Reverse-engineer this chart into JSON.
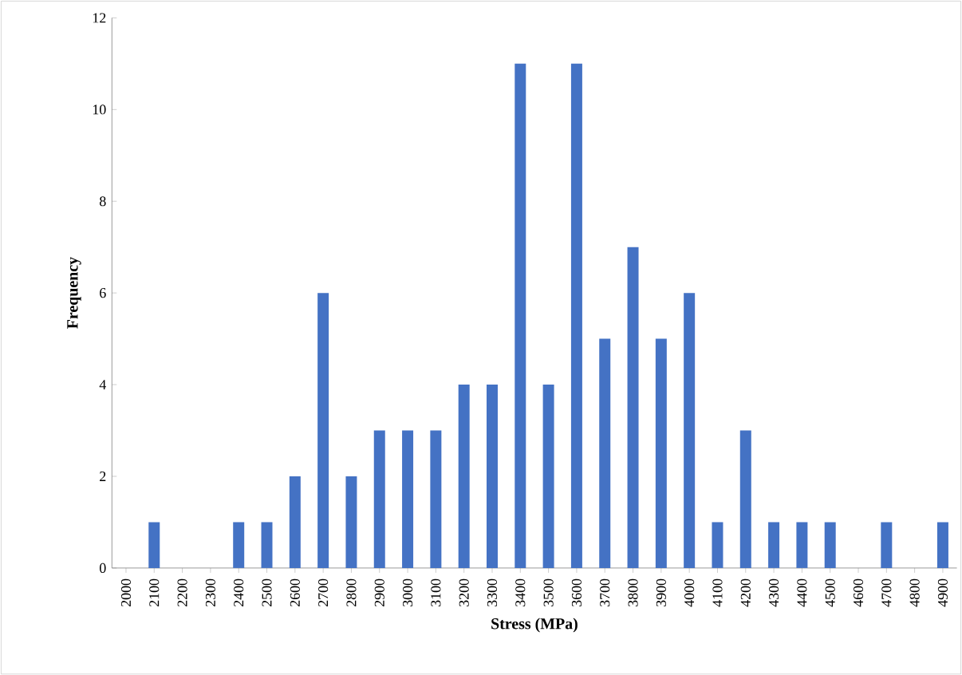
{
  "chart_data": {
    "type": "bar",
    "xlabel": "Stress (MPa)",
    "ylabel": "Frequency",
    "categories": [
      "2000",
      "2100",
      "2200",
      "2300",
      "2400",
      "2500",
      "2600",
      "2700",
      "2800",
      "2900",
      "3000",
      "3100",
      "3200",
      "3300",
      "3400",
      "3500",
      "3600",
      "3700",
      "3800",
      "3900",
      "4000",
      "4100",
      "4200",
      "4300",
      "4400",
      "4500",
      "4600",
      "4700",
      "4800",
      "4900"
    ],
    "values": [
      0,
      1,
      0,
      0,
      1,
      1,
      2,
      6,
      2,
      3,
      3,
      3,
      4,
      4,
      11,
      4,
      11,
      5,
      7,
      5,
      6,
      1,
      3,
      1,
      1,
      1,
      0,
      1,
      0,
      1
    ],
    "color": "#4472c4",
    "ylim": [
      0,
      12
    ],
    "yticks": [
      0,
      2,
      4,
      6,
      8,
      10,
      12
    ],
    "grid": false
  }
}
